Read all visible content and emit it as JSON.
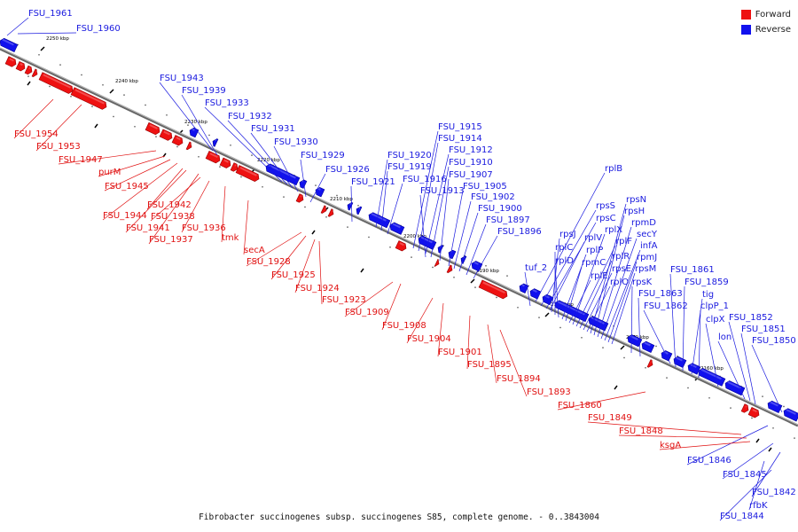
{
  "caption": "Fibrobacter succinogenes subsp. succinogenes S85, complete genome. - 0..3843004",
  "legend": [
    {
      "label": "Forward",
      "color": "#ee1111"
    },
    {
      "label": "Reverse",
      "color": "#1111ee"
    }
  ],
  "colors": {
    "forward": "#ee1111",
    "reverse": "#1111ee",
    "axis": "#888888"
  },
  "ticks": [
    "2250 kbp",
    "2240 kbp",
    "2230 kbp",
    "2220 kbp",
    "2210 kbp",
    "2200 kbp",
    "2190 kbp",
    "2180 kbp",
    "2170 kbp",
    "2160 kbp"
  ],
  "labels_reverse": [
    "FSU_1961",
    "FSU_1960",
    "FSU_1943",
    "FSU_1939",
    "FSU_1933",
    "FSU_1932",
    "FSU_1931",
    "FSU_1930",
    "FSU_1929",
    "FSU_1926",
    "FSU_1921",
    "FSU_1920",
    "FSU_1919",
    "FSU_1916",
    "FSU_1915",
    "FSU_1914",
    "FSU_1912",
    "FSU_1910",
    "FSU_1907",
    "FSU_1913",
    "FSU_1905",
    "FSU_1902",
    "FSU_1900",
    "FSU_1897",
    "FSU_1896",
    "rplB",
    "rpsS",
    "rpsC",
    "rplV",
    "rpsJ",
    "rplC",
    "rplD",
    "tuf_2",
    "rplP",
    "rpmC",
    "rplE",
    "rplX",
    "rplF",
    "rplR",
    "rpsE",
    "rplO",
    "rpsN",
    "rpsH",
    "rpmD",
    "secY",
    "infA",
    "rpmJ",
    "rpsM",
    "rpsK",
    "FSU_1863",
    "FSU_1862",
    "FSU_1861",
    "FSU_1859",
    "tig",
    "clpP_1",
    "clpX",
    "lon",
    "FSU_1852",
    "FSU_1851",
    "FSU_1850",
    "FSU_1846",
    "FSU_1845",
    "FSU_1842",
    "rfbK",
    "FSU_1844"
  ],
  "labels_forward": [
    "FSU_1954",
    "FSU_1953",
    "FSU_1947",
    "purM",
    "FSU_1945",
    "FSU_1942",
    "FSU_1944",
    "FSU_1938",
    "FSU_1941",
    "FSU_1936",
    "FSU_1937",
    "tmk",
    "secA",
    "FSU_1928",
    "FSU_1925",
    "FSU_1924",
    "FSU_1923",
    "FSU_1909",
    "FSU_1908",
    "FSU_1904",
    "FSU_1901",
    "FSU_1895",
    "FSU_1894",
    "FSU_1893",
    "FSU_1860",
    "FSU_1849",
    "FSU_1848",
    "ksgA"
  ]
}
